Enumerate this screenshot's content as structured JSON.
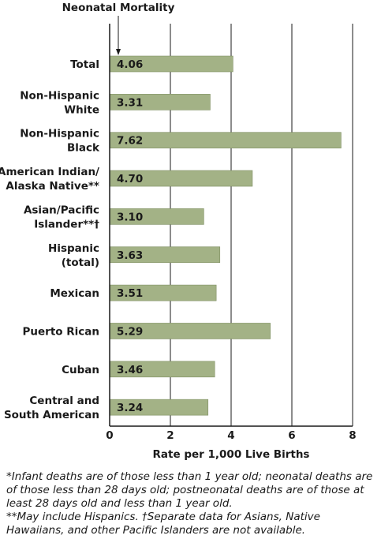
{
  "chart_data": {
    "type": "bar",
    "orientation": "horizontal",
    "annotation": "Neonatal Mortality",
    "categories": [
      [
        "Total"
      ],
      [
        "Non-Hispanic",
        "White"
      ],
      [
        "Non-Hispanic",
        "Black"
      ],
      [
        "American Indian/",
        "Alaska Native**"
      ],
      [
        "Asian/Pacific",
        "Islander**†"
      ],
      [
        "Hispanic",
        "(total)"
      ],
      [
        "Mexican"
      ],
      [
        "Puerto Rican"
      ],
      [
        "Cuban"
      ],
      [
        "Central and",
        "South American"
      ]
    ],
    "values": [
      4.06,
      3.31,
      7.62,
      4.7,
      3.1,
      3.63,
      3.51,
      5.29,
      3.46,
      3.24
    ],
    "value_labels": [
      "4.06",
      "3.31",
      "7.62",
      "4.70",
      "3.10",
      "3.63",
      "3.51",
      "5.29",
      "3.46",
      "3.24"
    ],
    "xlabel": "Rate per 1,000 Live Births",
    "xlim": [
      0,
      8
    ],
    "xticks": [
      0,
      2,
      4,
      6,
      8
    ],
    "grid": "vertical",
    "colors": {
      "bar": "#a3b286",
      "bar_edge": "#7f8f63",
      "axis": "#1a1a1a"
    }
  },
  "footnotes": {
    "line1": "*Infant deaths are of those less than 1 year old; neonatal deaths are of those less than 28 days old; postneonatal deaths are of those at least 28 days old and less than 1 year old.",
    "line2": "**May include Hispanics. †Separate data for Asians, Native Hawaiians, and other Pacific Islanders are not available."
  }
}
